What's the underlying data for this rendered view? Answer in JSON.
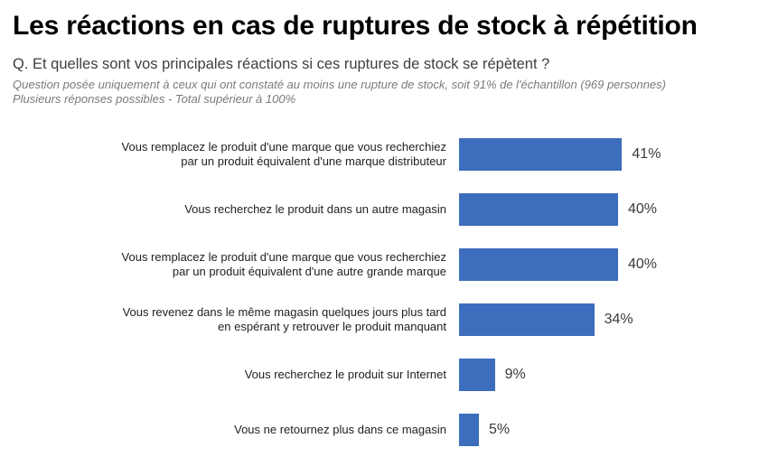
{
  "page": {
    "title": "Les réactions en cas de ruptures de stock à répétition",
    "question": "Q. Et quelles sont vos principales réactions si ces ruptures de stock se répètent ?",
    "note_line1": "Question posée uniquement à ceux qui ont constaté au moins une rupture de stock, soit 91% de l'échantillon (969 personnes)",
    "note_line2": "Plusieurs réponses possibles - Total supérieur à 100%"
  },
  "chart_data": {
    "type": "bar",
    "orientation": "horizontal",
    "title": "Les réactions en cas de ruptures de stock à répétition",
    "xlabel": "",
    "ylabel": "",
    "xlim": [
      0,
      45
    ],
    "grid": false,
    "legend": false,
    "bar_color": "#3D6DBD",
    "value_suffix": "%",
    "categories": [
      [
        "Vous remplacez le produit d'une marque que vous recherchiez",
        "par un produit équivalent d'une marque distributeur"
      ],
      [
        "Vous recherchez le produit dans un autre magasin"
      ],
      [
        "Vous remplacez le produit d'une marque que vous recherchiez",
        "par un produit équivalent d'une autre grande marque"
      ],
      [
        "Vous revenez dans le même magasin quelques jours plus tard",
        "en espérant y retrouver le produit manquant"
      ],
      [
        "Vous recherchez le produit sur Internet"
      ],
      [
        "Vous ne retournez plus dans ce magasin"
      ]
    ],
    "values": [
      41,
      40,
      40,
      34,
      9,
      5
    ],
    "value_labels": [
      "41%",
      "40%",
      "40%",
      "34%",
      "9%",
      "5%"
    ]
  }
}
